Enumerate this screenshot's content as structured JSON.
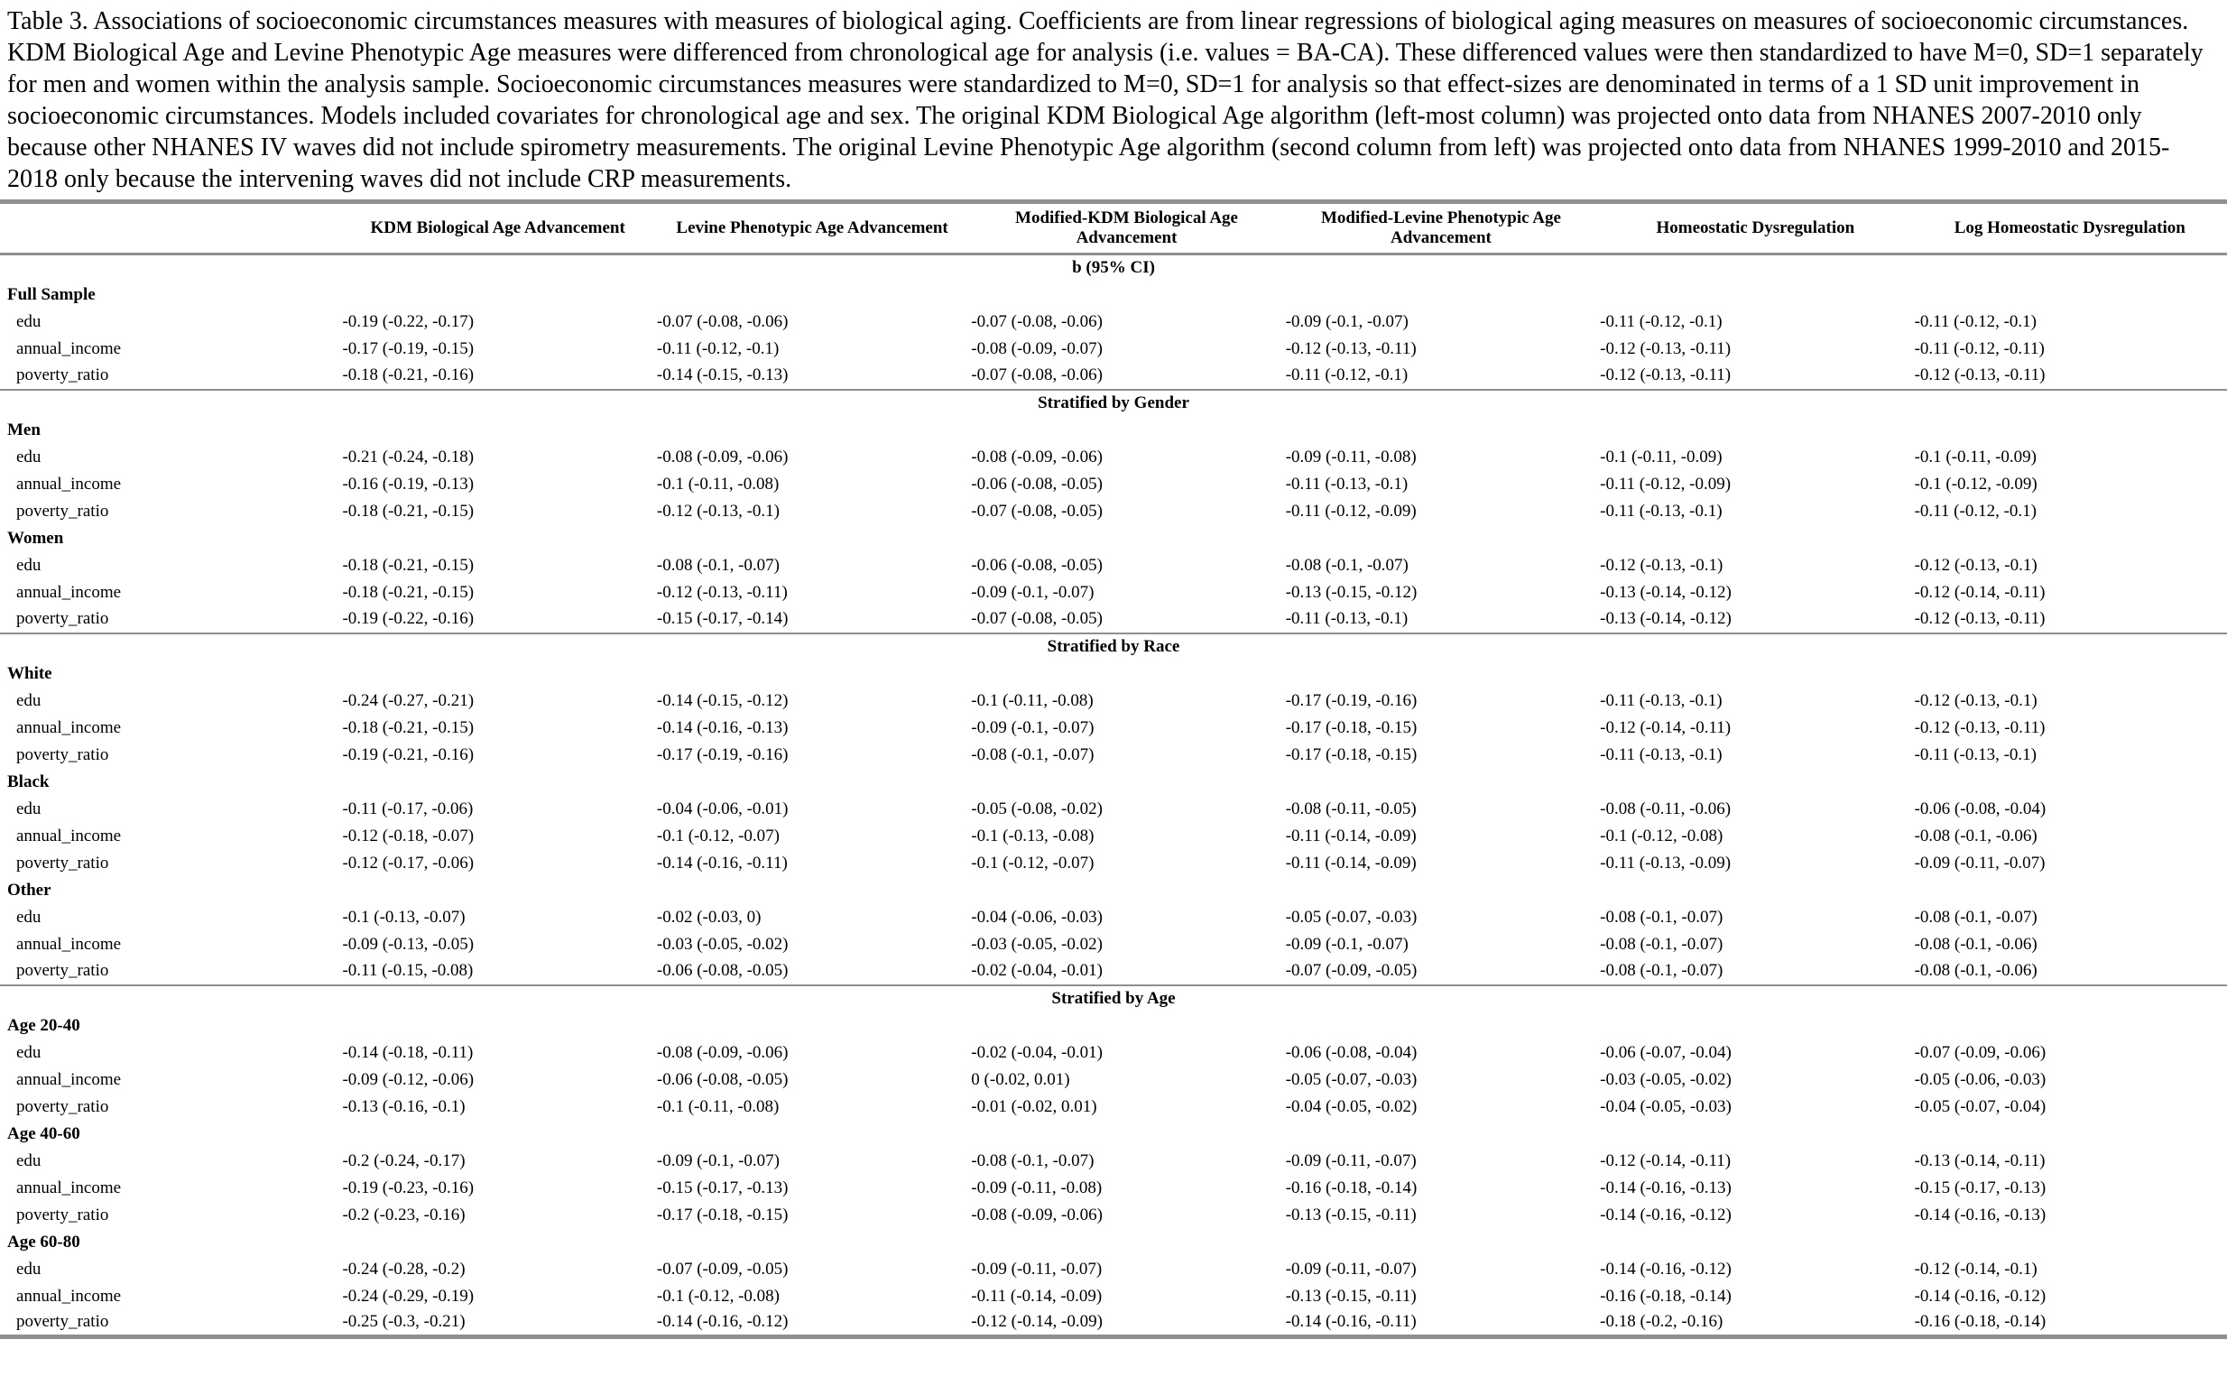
{
  "caption": "Table 3. Associations of socioeconomic circumstances measures with measures of biological aging. Coefficients are from linear regressions of biological aging measures on measures of socioeconomic circumstances. KDM Biological Age and Levine Phenotypic Age measures were differenced from chronological age for analysis (i.e. values = BA-CA). These differenced values were then standardized to have M=0, SD=1 separately for men and women within the analysis sample. Socioeconomic circumstances measures were standardized to M=0, SD=1 for analysis so that effect-sizes are denominated in terms of a 1 SD unit improvement in socioeconomic circumstances. Models included covariates for chronological age and sex. The original KDM Biological Age algorithm (left-most column) was projected onto data from NHANES 2007-2010 only because other NHANES IV waves did not include spirometry measurements. The original Levine Phenotypic Age algorithm (second column from left) was projected onto data from NHANES 1999-2010 and 2015-2018 only because the intervening waves did not include CRP measurements.",
  "colors": {
    "rule": "#8f8f8f",
    "text": "#000000",
    "background": "#ffffff"
  },
  "chart_data": {
    "type": "table",
    "title": "Table 3. Associations of socioeconomic circumstances measures with measures of biological aging."
  },
  "table": {
    "columns": [
      "KDM Biological Age Advancement",
      "Levine Phenotypic Age Advancement",
      "Modified-KDM Biological Age Advancement",
      "Modified-Levine Phenotypic Age Advancement",
      "Homeostatic Dysregulation",
      "Log Homeostatic Dysregulation"
    ],
    "stat_header": "b (95% CI)",
    "sections": [
      {
        "banner": null,
        "groups": [
          {
            "label": "Full Sample",
            "rows": [
              {
                "label": "edu",
                "values": [
                  "-0.19 (-0.22, -0.17)",
                  "-0.07 (-0.08, -0.06)",
                  "-0.07 (-0.08, -0.06)",
                  "-0.09 (-0.1, -0.07)",
                  "-0.11 (-0.12, -0.1)",
                  "-0.11 (-0.12, -0.1)"
                ]
              },
              {
                "label": "annual_income",
                "values": [
                  "-0.17 (-0.19, -0.15)",
                  "-0.11 (-0.12, -0.1)",
                  "-0.08 (-0.09, -0.07)",
                  "-0.12 (-0.13, -0.11)",
                  "-0.12 (-0.13, -0.11)",
                  "-0.11 (-0.12, -0.11)"
                ]
              },
              {
                "label": "poverty_ratio",
                "values": [
                  "-0.18 (-0.21, -0.16)",
                  "-0.14 (-0.15, -0.13)",
                  "-0.07 (-0.08, -0.06)",
                  "-0.11 (-0.12, -0.1)",
                  "-0.12 (-0.13, -0.11)",
                  "-0.12 (-0.13, -0.11)"
                ]
              }
            ]
          }
        ]
      },
      {
        "banner": "Stratified by Gender",
        "groups": [
          {
            "label": "Men",
            "rows": [
              {
                "label": "edu",
                "values": [
                  "-0.21 (-0.24, -0.18)",
                  "-0.08 (-0.09, -0.06)",
                  "-0.08 (-0.09, -0.06)",
                  "-0.09 (-0.11, -0.08)",
                  "-0.1 (-0.11, -0.09)",
                  "-0.1 (-0.11, -0.09)"
                ]
              },
              {
                "label": "annual_income",
                "values": [
                  "-0.16 (-0.19, -0.13)",
                  "-0.1 (-0.11, -0.08)",
                  "-0.06 (-0.08, -0.05)",
                  "-0.11 (-0.13, -0.1)",
                  "-0.11 (-0.12, -0.09)",
                  "-0.1 (-0.12, -0.09)"
                ]
              },
              {
                "label": "poverty_ratio",
                "values": [
                  "-0.18 (-0.21, -0.15)",
                  "-0.12 (-0.13, -0.1)",
                  "-0.07 (-0.08, -0.05)",
                  "-0.11 (-0.12, -0.09)",
                  "-0.11 (-0.13, -0.1)",
                  "-0.11 (-0.12, -0.1)"
                ]
              }
            ]
          },
          {
            "label": "Women",
            "rows": [
              {
                "label": "edu",
                "values": [
                  "-0.18 (-0.21, -0.15)",
                  "-0.08 (-0.1, -0.07)",
                  "-0.06 (-0.08, -0.05)",
                  "-0.08 (-0.1, -0.07)",
                  "-0.12 (-0.13, -0.1)",
                  "-0.12 (-0.13, -0.1)"
                ]
              },
              {
                "label": "annual_income",
                "values": [
                  "-0.18 (-0.21, -0.15)",
                  "-0.12 (-0.13, -0.11)",
                  "-0.09 (-0.1, -0.07)",
                  "-0.13 (-0.15, -0.12)",
                  "-0.13 (-0.14, -0.12)",
                  "-0.12 (-0.14, -0.11)"
                ]
              },
              {
                "label": "poverty_ratio",
                "values": [
                  "-0.19 (-0.22, -0.16)",
                  "-0.15 (-0.17, -0.14)",
                  "-0.07 (-0.08, -0.05)",
                  "-0.11 (-0.13, -0.1)",
                  "-0.13 (-0.14, -0.12)",
                  "-0.12 (-0.13, -0.11)"
                ]
              }
            ]
          }
        ]
      },
      {
        "banner": "Stratified by Race",
        "groups": [
          {
            "label": "White",
            "rows": [
              {
                "label": "edu",
                "values": [
                  "-0.24 (-0.27, -0.21)",
                  "-0.14 (-0.15, -0.12)",
                  "-0.1 (-0.11, -0.08)",
                  "-0.17 (-0.19, -0.16)",
                  "-0.11 (-0.13, -0.1)",
                  "-0.12 (-0.13, -0.1)"
                ]
              },
              {
                "label": "annual_income",
                "values": [
                  "-0.18 (-0.21, -0.15)",
                  "-0.14 (-0.16, -0.13)",
                  "-0.09 (-0.1, -0.07)",
                  "-0.17 (-0.18, -0.15)",
                  "-0.12 (-0.14, -0.11)",
                  "-0.12 (-0.13, -0.11)"
                ]
              },
              {
                "label": "poverty_ratio",
                "values": [
                  "-0.19 (-0.21, -0.16)",
                  "-0.17 (-0.19, -0.16)",
                  "-0.08 (-0.1, -0.07)",
                  "-0.17 (-0.18, -0.15)",
                  "-0.11 (-0.13, -0.1)",
                  "-0.11 (-0.13, -0.1)"
                ]
              }
            ]
          },
          {
            "label": "Black",
            "rows": [
              {
                "label": "edu",
                "values": [
                  "-0.11 (-0.17, -0.06)",
                  "-0.04 (-0.06, -0.01)",
                  "-0.05 (-0.08, -0.02)",
                  "-0.08 (-0.11, -0.05)",
                  "-0.08 (-0.11, -0.06)",
                  "-0.06 (-0.08, -0.04)"
                ]
              },
              {
                "label": "annual_income",
                "values": [
                  "-0.12 (-0.18, -0.07)",
                  "-0.1 (-0.12, -0.07)",
                  "-0.1 (-0.13, -0.08)",
                  "-0.11 (-0.14, -0.09)",
                  "-0.1 (-0.12, -0.08)",
                  "-0.08 (-0.1, -0.06)"
                ]
              },
              {
                "label": "poverty_ratio",
                "values": [
                  "-0.12 (-0.17, -0.06)",
                  "-0.14 (-0.16, -0.11)",
                  "-0.1 (-0.12, -0.07)",
                  "-0.11 (-0.14, -0.09)",
                  "-0.11 (-0.13, -0.09)",
                  "-0.09 (-0.11, -0.07)"
                ]
              }
            ]
          },
          {
            "label": "Other",
            "rows": [
              {
                "label": "edu",
                "values": [
                  "-0.1 (-0.13, -0.07)",
                  "-0.02 (-0.03, 0)",
                  "-0.04 (-0.06, -0.03)",
                  "-0.05 (-0.07, -0.03)",
                  "-0.08 (-0.1, -0.07)",
                  "-0.08 (-0.1, -0.07)"
                ]
              },
              {
                "label": "annual_income",
                "values": [
                  "-0.09 (-0.13, -0.05)",
                  "-0.03 (-0.05, -0.02)",
                  "-0.03 (-0.05, -0.02)",
                  "-0.09 (-0.1, -0.07)",
                  "-0.08 (-0.1, -0.07)",
                  "-0.08 (-0.1, -0.06)"
                ]
              },
              {
                "label": "poverty_ratio",
                "values": [
                  "-0.11 (-0.15, -0.08)",
                  "-0.06 (-0.08, -0.05)",
                  "-0.02 (-0.04, -0.01)",
                  "-0.07 (-0.09, -0.05)",
                  "-0.08 (-0.1, -0.07)",
                  "-0.08 (-0.1, -0.06)"
                ]
              }
            ]
          }
        ]
      },
      {
        "banner": "Stratified by Age",
        "groups": [
          {
            "label": "Age 20-40",
            "rows": [
              {
                "label": "edu",
                "values": [
                  "-0.14 (-0.18, -0.11)",
                  "-0.08 (-0.09, -0.06)",
                  "-0.02 (-0.04, -0.01)",
                  "-0.06 (-0.08, -0.04)",
                  "-0.06 (-0.07, -0.04)",
                  "-0.07 (-0.09, -0.06)"
                ]
              },
              {
                "label": "annual_income",
                "values": [
                  "-0.09 (-0.12, -0.06)",
                  "-0.06 (-0.08, -0.05)",
                  "0 (-0.02, 0.01)",
                  "-0.05 (-0.07, -0.03)",
                  "-0.03 (-0.05, -0.02)",
                  "-0.05 (-0.06, -0.03)"
                ]
              },
              {
                "label": "poverty_ratio",
                "values": [
                  "-0.13 (-0.16, -0.1)",
                  "-0.1 (-0.11, -0.08)",
                  "-0.01 (-0.02, 0.01)",
                  "-0.04 (-0.05, -0.02)",
                  "-0.04 (-0.05, -0.03)",
                  "-0.05 (-0.07, -0.04)"
                ]
              }
            ]
          },
          {
            "label": "Age 40-60",
            "rows": [
              {
                "label": "edu",
                "values": [
                  "-0.2 (-0.24, -0.17)",
                  "-0.09 (-0.1, -0.07)",
                  "-0.08 (-0.1, -0.07)",
                  "-0.09 (-0.11, -0.07)",
                  "-0.12 (-0.14, -0.11)",
                  "-0.13 (-0.14, -0.11)"
                ]
              },
              {
                "label": "annual_income",
                "values": [
                  "-0.19 (-0.23, -0.16)",
                  "-0.15 (-0.17, -0.13)",
                  "-0.09 (-0.11, -0.08)",
                  "-0.16 (-0.18, -0.14)",
                  "-0.14 (-0.16, -0.13)",
                  "-0.15 (-0.17, -0.13)"
                ]
              },
              {
                "label": "poverty_ratio",
                "values": [
                  "-0.2 (-0.23, -0.16)",
                  "-0.17 (-0.18, -0.15)",
                  "-0.08 (-0.09, -0.06)",
                  "-0.13 (-0.15, -0.11)",
                  "-0.14 (-0.16, -0.12)",
                  "-0.14 (-0.16, -0.13)"
                ]
              }
            ]
          },
          {
            "label": "Age 60-80",
            "rows": [
              {
                "label": "edu",
                "values": [
                  "-0.24 (-0.28, -0.2)",
                  "-0.07 (-0.09, -0.05)",
                  "-0.09 (-0.11, -0.07)",
                  "-0.09 (-0.11, -0.07)",
                  "-0.14 (-0.16, -0.12)",
                  "-0.12 (-0.14, -0.1)"
                ]
              },
              {
                "label": "annual_income",
                "values": [
                  "-0.24 (-0.29, -0.19)",
                  "-0.1 (-0.12, -0.08)",
                  "-0.11 (-0.14, -0.09)",
                  "-0.13 (-0.15, -0.11)",
                  "-0.16 (-0.18, -0.14)",
                  "-0.14 (-0.16, -0.12)"
                ]
              },
              {
                "label": "poverty_ratio",
                "values": [
                  "-0.25 (-0.3, -0.21)",
                  "-0.14 (-0.16, -0.12)",
                  "-0.12 (-0.14, -0.09)",
                  "-0.14 (-0.16, -0.11)",
                  "-0.18 (-0.2, -0.16)",
                  "-0.16 (-0.18, -0.14)"
                ]
              }
            ]
          }
        ]
      }
    ]
  }
}
